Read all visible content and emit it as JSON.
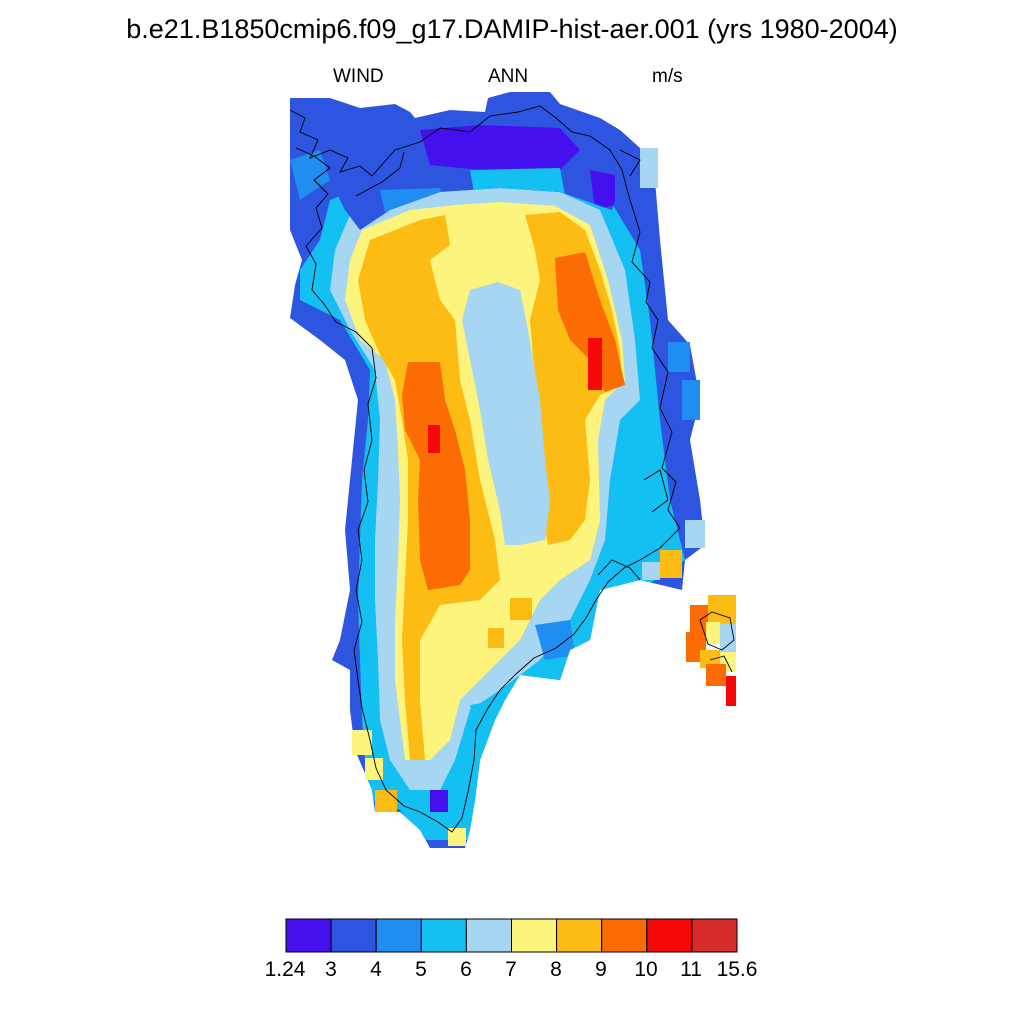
{
  "title": "b.e21.B1850cmip6.f09_g17.DAMIP-hist-aer.001 (yrs 1980-2004)",
  "subtitle": {
    "left": "WIND",
    "center": "ANN",
    "right": "m/s"
  },
  "colorbar": {
    "labels": [
      "1.24",
      "3",
      "4",
      "5",
      "6",
      "7",
      "8",
      "9",
      "10",
      "11",
      "15.6"
    ],
    "colors": [
      "#4411ee",
      "#2d55e0",
      "#1f8ef0",
      "#14bff2",
      "#a6d6f2",
      "#fcf47c",
      "#fcbc14",
      "#fb6c04",
      "#f40808",
      "#d62c2c"
    ]
  }
}
